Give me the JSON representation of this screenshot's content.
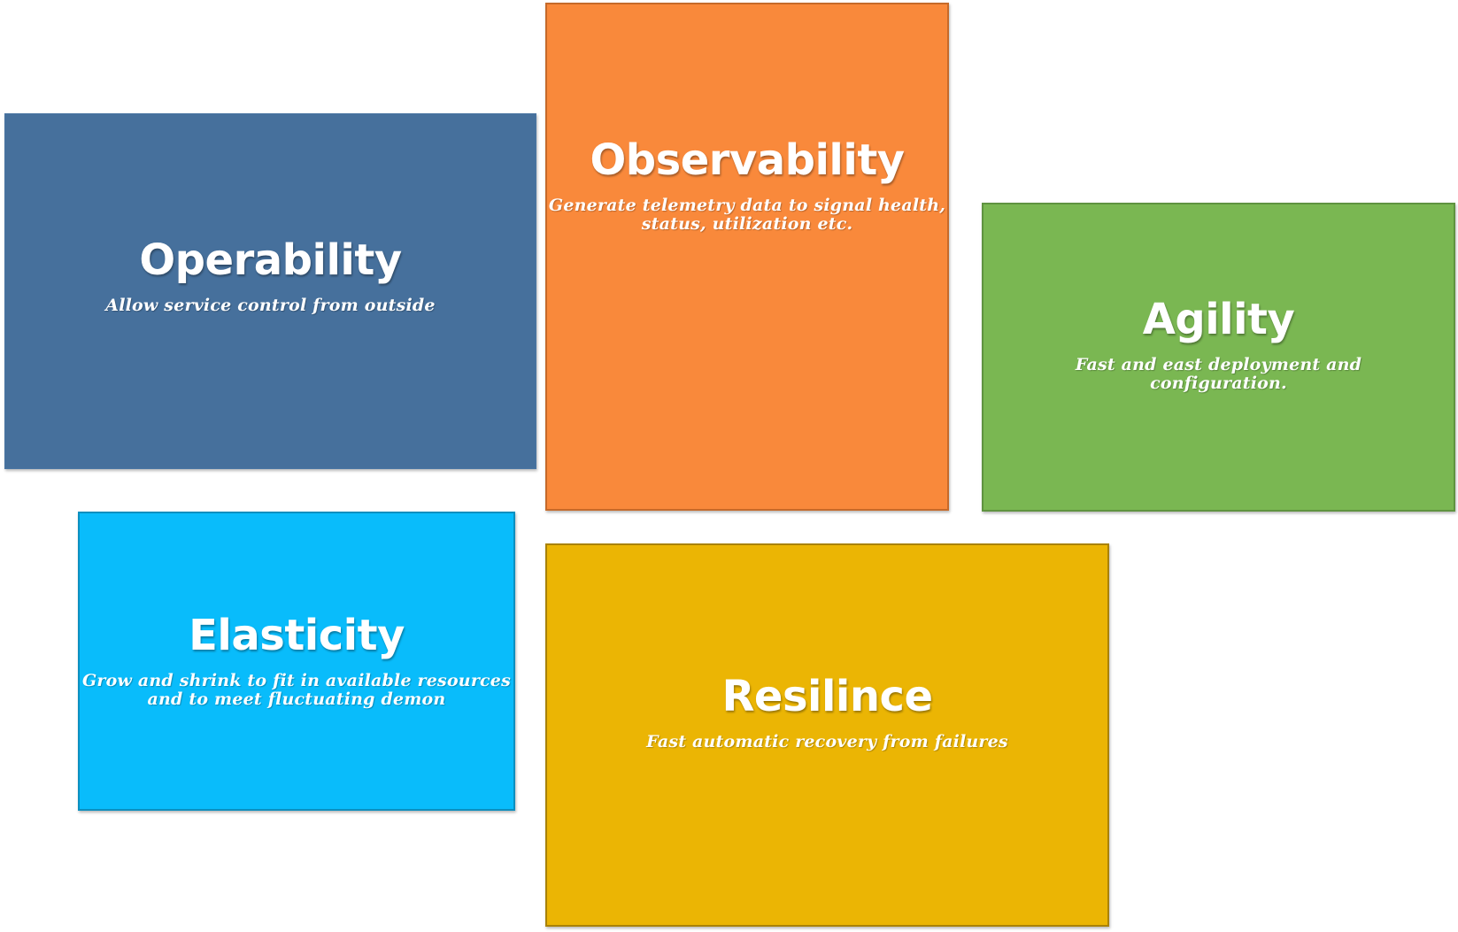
{
  "tiles": {
    "operability": {
      "title": "Operability",
      "description": "Allow service control from outside",
      "color": "#46709c"
    },
    "observability": {
      "title": "Observability",
      "description": "Generate telemetry data to signal health,\nstatus, utilization etc.",
      "color": "#f9893b"
    },
    "agility": {
      "title": "Agility",
      "description": "Fast and east deployment and\nconfiguration.",
      "color": "#7ab752"
    },
    "elasticity": {
      "title": "Elasticity",
      "description": "Grow and shrink to fit in available resources\nand to meet fluctuating demon",
      "color": "#09bcfb"
    },
    "resilince": {
      "title": "Resilince",
      "description": "Fast automatic recovery from failures",
      "color": "#ebb504"
    }
  }
}
